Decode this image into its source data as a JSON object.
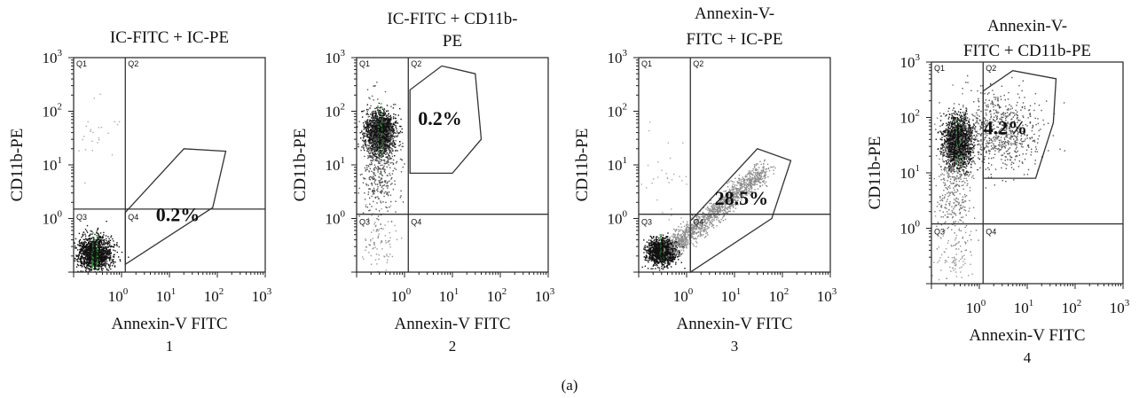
{
  "figure_label": "(a)",
  "chart_data": [
    {
      "type": "scatter",
      "panel_number": "1",
      "title": [
        "IC-FITC + IC-PE"
      ],
      "xlabel": "Annexin-V FITC",
      "ylabel": "CD11b-PE",
      "xscale": "log",
      "yscale": "log",
      "xlim": [
        0.1,
        1000
      ],
      "ylim": [
        0.1,
        1000
      ],
      "x_tick_labels": [
        {
          "base": "10",
          "exp": "0"
        },
        {
          "base": "10",
          "exp": "1"
        },
        {
          "base": "10",
          "exp": "2"
        },
        {
          "base": "10",
          "exp": "3"
        }
      ],
      "y_tick_labels": [
        {
          "base": "10",
          "exp": "0"
        },
        {
          "base": "10",
          "exp": "1"
        },
        {
          "base": "10",
          "exp": "2"
        },
        {
          "base": "10",
          "exp": "3"
        }
      ],
      "quadrant_labels": [
        "Q1",
        "Q2",
        "Q3",
        "Q4"
      ],
      "quadrant_gate": {
        "x": 1.2,
        "y": 1.5
      },
      "gate_polygon": [
        [
          1.2,
          1.3
        ],
        [
          20,
          20
        ],
        [
          150,
          18
        ],
        [
          80,
          1.6
        ],
        [
          1.2,
          0.14
        ]
      ],
      "gate_percent": "0.2%",
      "gate_label_at": {
        "x": 15,
        "y": 0.9
      },
      "populations": [
        {
          "x_center": 0.27,
          "y_center": 0.23,
          "x_spread": 0.18,
          "y_spread": 0.16,
          "count": 1400,
          "color": "#111111",
          "core_color": "#2f8f3a"
        },
        {
          "x_center": 0.35,
          "y_center": 45,
          "x_spread": 0.25,
          "y_spread": 0.25,
          "count": 25,
          "color": "#aaaaaa"
        }
      ],
      "grid": false,
      "legend": "none"
    },
    {
      "type": "scatter",
      "panel_number": "2",
      "title": [
        "IC-FITC + CD11b-",
        "PE"
      ],
      "xlabel": "Annexin-V FITC",
      "ylabel": "CD11b-PE",
      "xscale": "log",
      "yscale": "log",
      "xlim": [
        0.1,
        1000
      ],
      "ylim": [
        0.1,
        1000
      ],
      "x_tick_labels": [
        {
          "base": "10",
          "exp": "0"
        },
        {
          "base": "10",
          "exp": "1"
        },
        {
          "base": "10",
          "exp": "2"
        },
        {
          "base": "10",
          "exp": "3"
        }
      ],
      "y_tick_labels": [
        {
          "base": "10",
          "exp": "0"
        },
        {
          "base": "10",
          "exp": "1"
        },
        {
          "base": "10",
          "exp": "2"
        },
        {
          "base": "10",
          "exp": "3"
        }
      ],
      "quadrant_labels": [
        "Q1",
        "Q2",
        "Q3",
        "Q4"
      ],
      "quadrant_gate": {
        "x": 1.2,
        "y": 1.2
      },
      "gate_polygon": [
        [
          1.3,
          7
        ],
        [
          1.3,
          250
        ],
        [
          6,
          700
        ],
        [
          30,
          500
        ],
        [
          40,
          30
        ],
        [
          10,
          7
        ]
      ],
      "gate_percent": "0.2%",
      "gate_label_at": {
        "x": 5.5,
        "y": 55
      },
      "populations": [
        {
          "x_center": 0.3,
          "y_center": 40,
          "x_spread": 0.15,
          "y_spread": 0.2,
          "count": 1600,
          "color": "#111111",
          "core_color": "#2f8f3a"
        },
        {
          "x_center": 0.28,
          "y_center": 12,
          "x_spread": 0.2,
          "y_spread": 0.55,
          "count": 500,
          "color": "#555555"
        },
        {
          "x_center": 0.3,
          "y_center": 0.35,
          "x_spread": 0.18,
          "y_spread": 0.3,
          "count": 80,
          "color": "#999999"
        }
      ],
      "grid": false,
      "legend": "none"
    },
    {
      "type": "scatter",
      "panel_number": "3",
      "title": [
        "Annexin-V-",
        "FITC + IC-PE"
      ],
      "xlabel": "Annexin-V FITC",
      "ylabel": "CD11b-PE",
      "xscale": "log",
      "yscale": "log",
      "xlim": [
        0.1,
        1000
      ],
      "ylim": [
        0.1,
        1000
      ],
      "x_tick_labels": [
        {
          "base": "10",
          "exp": "0"
        },
        {
          "base": "10",
          "exp": "1"
        },
        {
          "base": "10",
          "exp": "2"
        },
        {
          "base": "10",
          "exp": "3"
        }
      ],
      "y_tick_labels": [
        {
          "base": "10",
          "exp": "0"
        },
        {
          "base": "10",
          "exp": "1"
        },
        {
          "base": "10",
          "exp": "2"
        },
        {
          "base": "10",
          "exp": "3"
        }
      ],
      "quadrant_labels": [
        "Q1",
        "Q2",
        "Q3",
        "Q4"
      ],
      "quadrant_gate": {
        "x": 1.2,
        "y": 1.2
      },
      "gate_polygon": [
        [
          1.2,
          0.9
        ],
        [
          30,
          20
        ],
        [
          150,
          12
        ],
        [
          60,
          1.0
        ],
        [
          1.2,
          0.1
        ]
      ],
      "gate_percent": "28.5%",
      "gate_label_at": {
        "x": 14,
        "y": 1.8
      },
      "populations": [
        {
          "x_center": 0.3,
          "y_center": 0.25,
          "x_spread": 0.15,
          "y_spread": 0.12,
          "count": 1300,
          "color": "#111111",
          "core_color": "#2f8f3a"
        },
        {
          "type": "diagonal",
          "x_from": 0.5,
          "x_to": 40,
          "y_from": 0.3,
          "y_to": 8,
          "spread": 0.1,
          "count": 1300,
          "color": "#8c8c8c"
        },
        {
          "x_center": 0.35,
          "y_center": 5,
          "x_spread": 0.3,
          "y_spread": 0.5,
          "count": 30,
          "color": "#aaaaaa"
        }
      ],
      "grid": false,
      "legend": "none"
    },
    {
      "type": "scatter",
      "panel_number": "4",
      "title": [
        "Annexin-V-",
        "FITC + CD11b-PE"
      ],
      "xlabel": "Annexin-V FITC",
      "ylabel": "CD11b-PE",
      "xscale": "log",
      "yscale": "log",
      "xlim": [
        0.1,
        1000
      ],
      "ylim": [
        0.1,
        1000
      ],
      "x_tick_labels": [
        {
          "base": "10",
          "exp": "0"
        },
        {
          "base": "10",
          "exp": "1"
        },
        {
          "base": "10",
          "exp": "2"
        },
        {
          "base": "10",
          "exp": "3"
        }
      ],
      "y_tick_labels": [
        {
          "base": "10",
          "exp": "0"
        },
        {
          "base": "10",
          "exp": "1"
        },
        {
          "base": "10",
          "exp": "2"
        },
        {
          "base": "10",
          "exp": "3"
        }
      ],
      "quadrant_labels": [
        "Q1",
        "Q2",
        "Q3",
        "Q4"
      ],
      "quadrant_gate": {
        "x": 1.2,
        "y": 1.2
      },
      "gate_polygon": [
        [
          1.2,
          8
        ],
        [
          1.2,
          300
        ],
        [
          5,
          700
        ],
        [
          40,
          500
        ],
        [
          35,
          80
        ],
        [
          15,
          8
        ]
      ],
      "gate_percent": "4.2%",
      "gate_label_at": {
        "x": 3.5,
        "y": 50
      },
      "populations": [
        {
          "x_center": 0.35,
          "y_center": 35,
          "x_spread": 0.14,
          "y_spread": 0.22,
          "count": 1700,
          "color": "#111111",
          "core_color": "#2f8f3a"
        },
        {
          "x_center": 2.5,
          "y_center": 55,
          "x_spread": 0.45,
          "y_spread": 0.35,
          "count": 700,
          "color": "#555555"
        },
        {
          "x_center": 0.3,
          "y_center": 6,
          "x_spread": 0.2,
          "y_spread": 0.55,
          "count": 400,
          "color": "#777777"
        },
        {
          "x_center": 0.3,
          "y_center": 0.3,
          "x_spread": 0.2,
          "y_spread": 0.3,
          "count": 90,
          "color": "#999999"
        }
      ],
      "grid": false,
      "legend": "none"
    }
  ]
}
